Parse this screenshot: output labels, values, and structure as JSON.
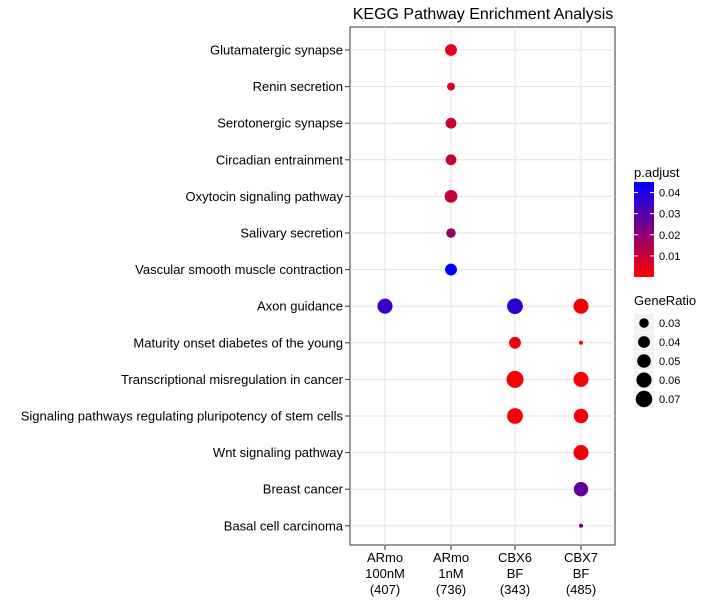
{
  "chart_data": {
    "type": "scatter",
    "title": "KEGG Pathway Enrichment Analysis",
    "xlabel": "",
    "ylabel": "",
    "x_categories": [
      [
        "ARmo",
        "100nM",
        "(407)"
      ],
      [
        "ARmo",
        "1nM",
        "(736)"
      ],
      [
        "CBX6",
        "BF",
        "(343)"
      ],
      [
        "CBX7",
        "BF",
        "(485)"
      ]
    ],
    "y_categories": [
      "Glutamatergic synapse",
      "Renin secretion",
      "Serotonergic synapse",
      "Circadian entrainment",
      "Oxytocin signaling pathway",
      "Salivary secretion",
      "Vascular smooth muscle contraction",
      "Axon guidance",
      "Maturity onset diabetes of the young",
      "Transcriptional misregulation in cancer",
      "Signaling pathways regulating pluripotency of stem cells",
      "Wnt signaling pathway",
      "Breast cancer",
      "Basal cell carcinoma"
    ],
    "points": [
      {
        "x": 1,
        "y": 0,
        "GeneRatio": 0.04,
        "p_adjust": 0.005
      },
      {
        "x": 1,
        "y": 1,
        "GeneRatio": 0.025,
        "p_adjust": 0.006
      },
      {
        "x": 1,
        "y": 2,
        "GeneRatio": 0.035,
        "p_adjust": 0.009
      },
      {
        "x": 1,
        "y": 3,
        "GeneRatio": 0.035,
        "p_adjust": 0.009
      },
      {
        "x": 1,
        "y": 4,
        "GeneRatio": 0.045,
        "p_adjust": 0.01
      },
      {
        "x": 1,
        "y": 5,
        "GeneRatio": 0.03,
        "p_adjust": 0.018
      },
      {
        "x": 1,
        "y": 6,
        "GeneRatio": 0.04,
        "p_adjust": 0.045
      },
      {
        "x": 0,
        "y": 7,
        "GeneRatio": 0.06,
        "p_adjust": 0.035
      },
      {
        "x": 2,
        "y": 7,
        "GeneRatio": 0.065,
        "p_adjust": 0.037
      },
      {
        "x": 3,
        "y": 7,
        "GeneRatio": 0.06,
        "p_adjust": 0.002
      },
      {
        "x": 2,
        "y": 8,
        "GeneRatio": 0.04,
        "p_adjust": 0.002
      },
      {
        "x": 3,
        "y": 8,
        "GeneRatio": 0.02,
        "p_adjust": 0.002
      },
      {
        "x": 2,
        "y": 9,
        "GeneRatio": 0.075,
        "p_adjust": 0.001
      },
      {
        "x": 3,
        "y": 9,
        "GeneRatio": 0.06,
        "p_adjust": 0.001
      },
      {
        "x": 2,
        "y": 10,
        "GeneRatio": 0.065,
        "p_adjust": 0.001
      },
      {
        "x": 3,
        "y": 10,
        "GeneRatio": 0.055,
        "p_adjust": 0.002
      },
      {
        "x": 3,
        "y": 11,
        "GeneRatio": 0.06,
        "p_adjust": 0.002
      },
      {
        "x": 3,
        "y": 12,
        "GeneRatio": 0.055,
        "p_adjust": 0.028
      },
      {
        "x": 3,
        "y": 13,
        "GeneRatio": 0.02,
        "p_adjust": 0.025
      }
    ],
    "color_scale": {
      "title": "p.adjust",
      "low_color": "#ff0000",
      "high_color": "#0000ff",
      "range": [
        0.0,
        0.045
      ],
      "ticks": [
        "0.04",
        "0.03",
        "0.02",
        "0.01"
      ],
      "tick_values": [
        0.04,
        0.03,
        0.02,
        0.01
      ]
    },
    "size_scale": {
      "title": "GeneRatio",
      "range": [
        0.02,
        0.075
      ],
      "ticks": [
        "0.03",
        "0.04",
        "0.05",
        "0.06",
        "0.07"
      ],
      "tick_values": [
        0.03,
        0.04,
        0.05,
        0.06,
        0.07
      ]
    },
    "grid": true,
    "legend_position": "right"
  }
}
